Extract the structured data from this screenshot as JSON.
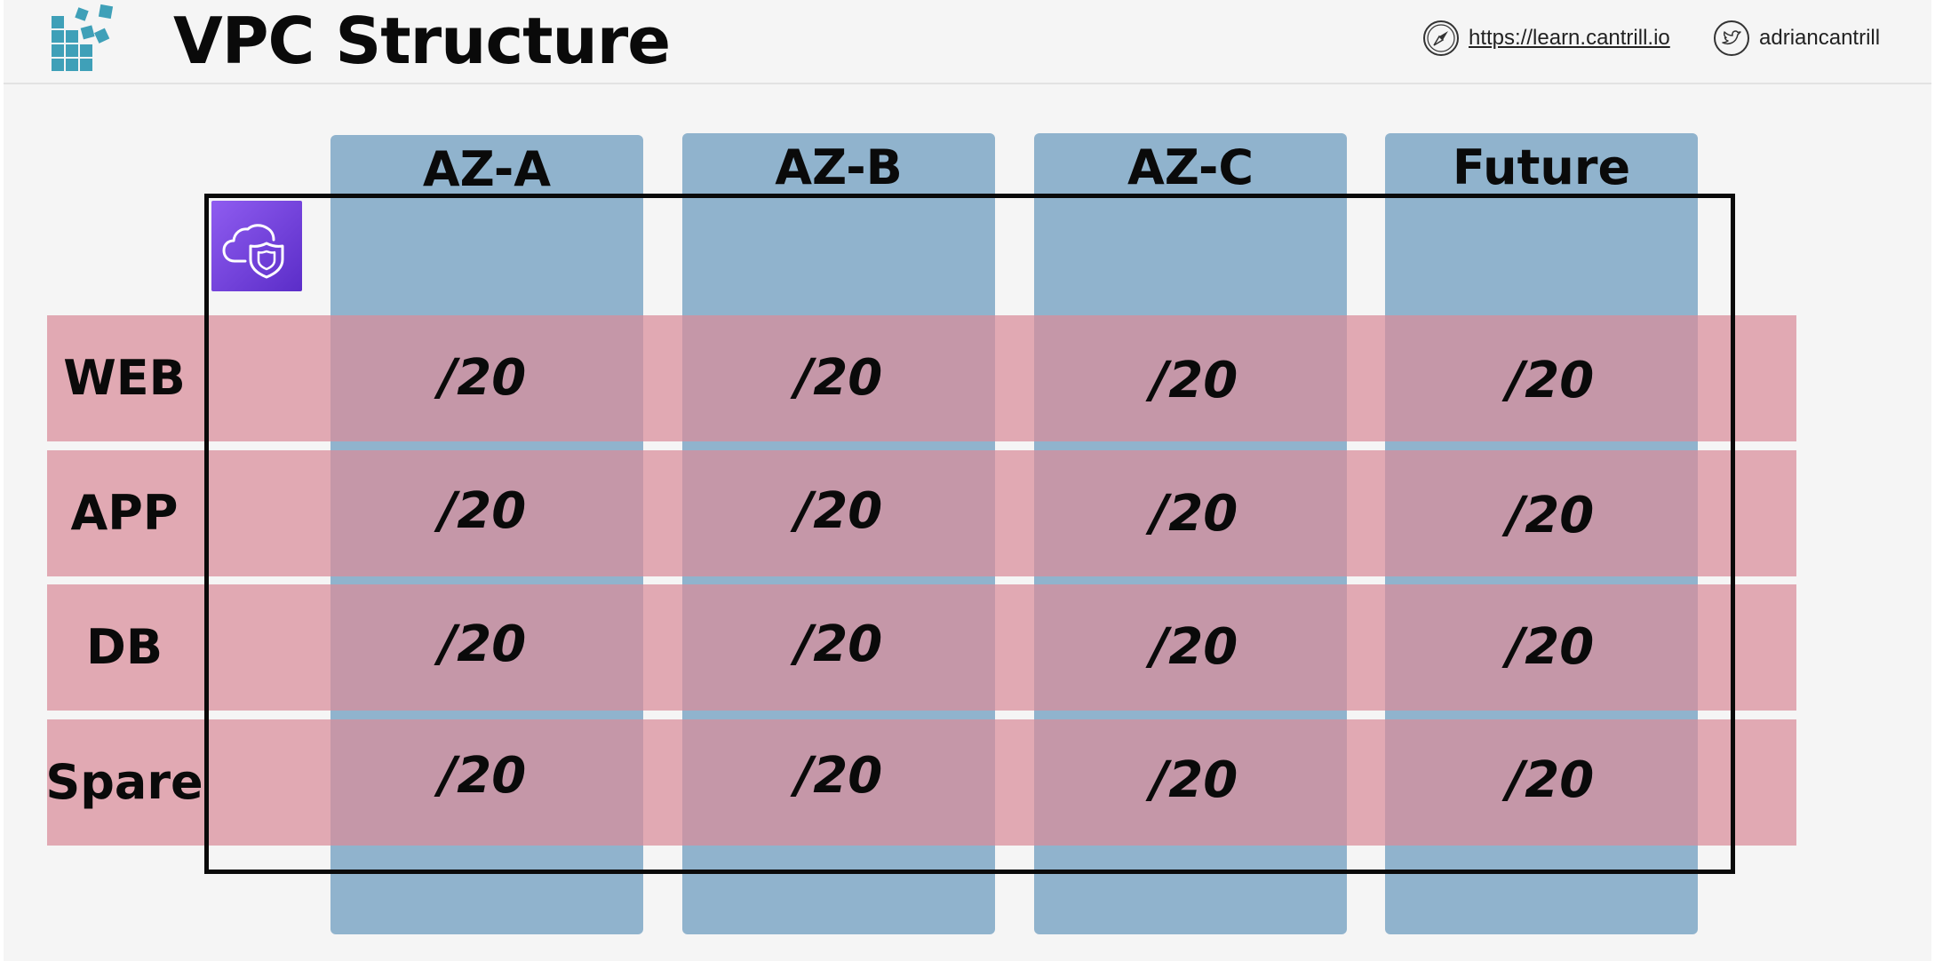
{
  "header": {
    "title": "VPC Structure",
    "site_link": "https://learn.cantrill.io",
    "handle": "adriancantrill",
    "icons": {
      "logo": "blocks-logo-icon",
      "site": "compass-icon",
      "social": "twitter-icon"
    }
  },
  "diagram": {
    "vpc_icon": "vpc-cloud-shield-icon",
    "columns": [
      "AZ-A",
      "AZ-B",
      "AZ-C",
      "Future"
    ],
    "rows": [
      {
        "label": "WEB",
        "cells": [
          "/20",
          "/20",
          "/20",
          "/20"
        ]
      },
      {
        "label": "APP",
        "cells": [
          "/20",
          "/20",
          "/20",
          "/20"
        ]
      },
      {
        "label": "DB",
        "cells": [
          "/20",
          "/20",
          "/20",
          "/20"
        ]
      },
      {
        "label": "Spare",
        "cells": [
          "/20",
          "/20",
          "/20",
          "/20"
        ]
      }
    ]
  },
  "colors": {
    "az_column": "#90b3cd",
    "tier_row": "#da8c9a",
    "vpc_icon": "#7b48e8",
    "logo": "#3fa0b8"
  }
}
